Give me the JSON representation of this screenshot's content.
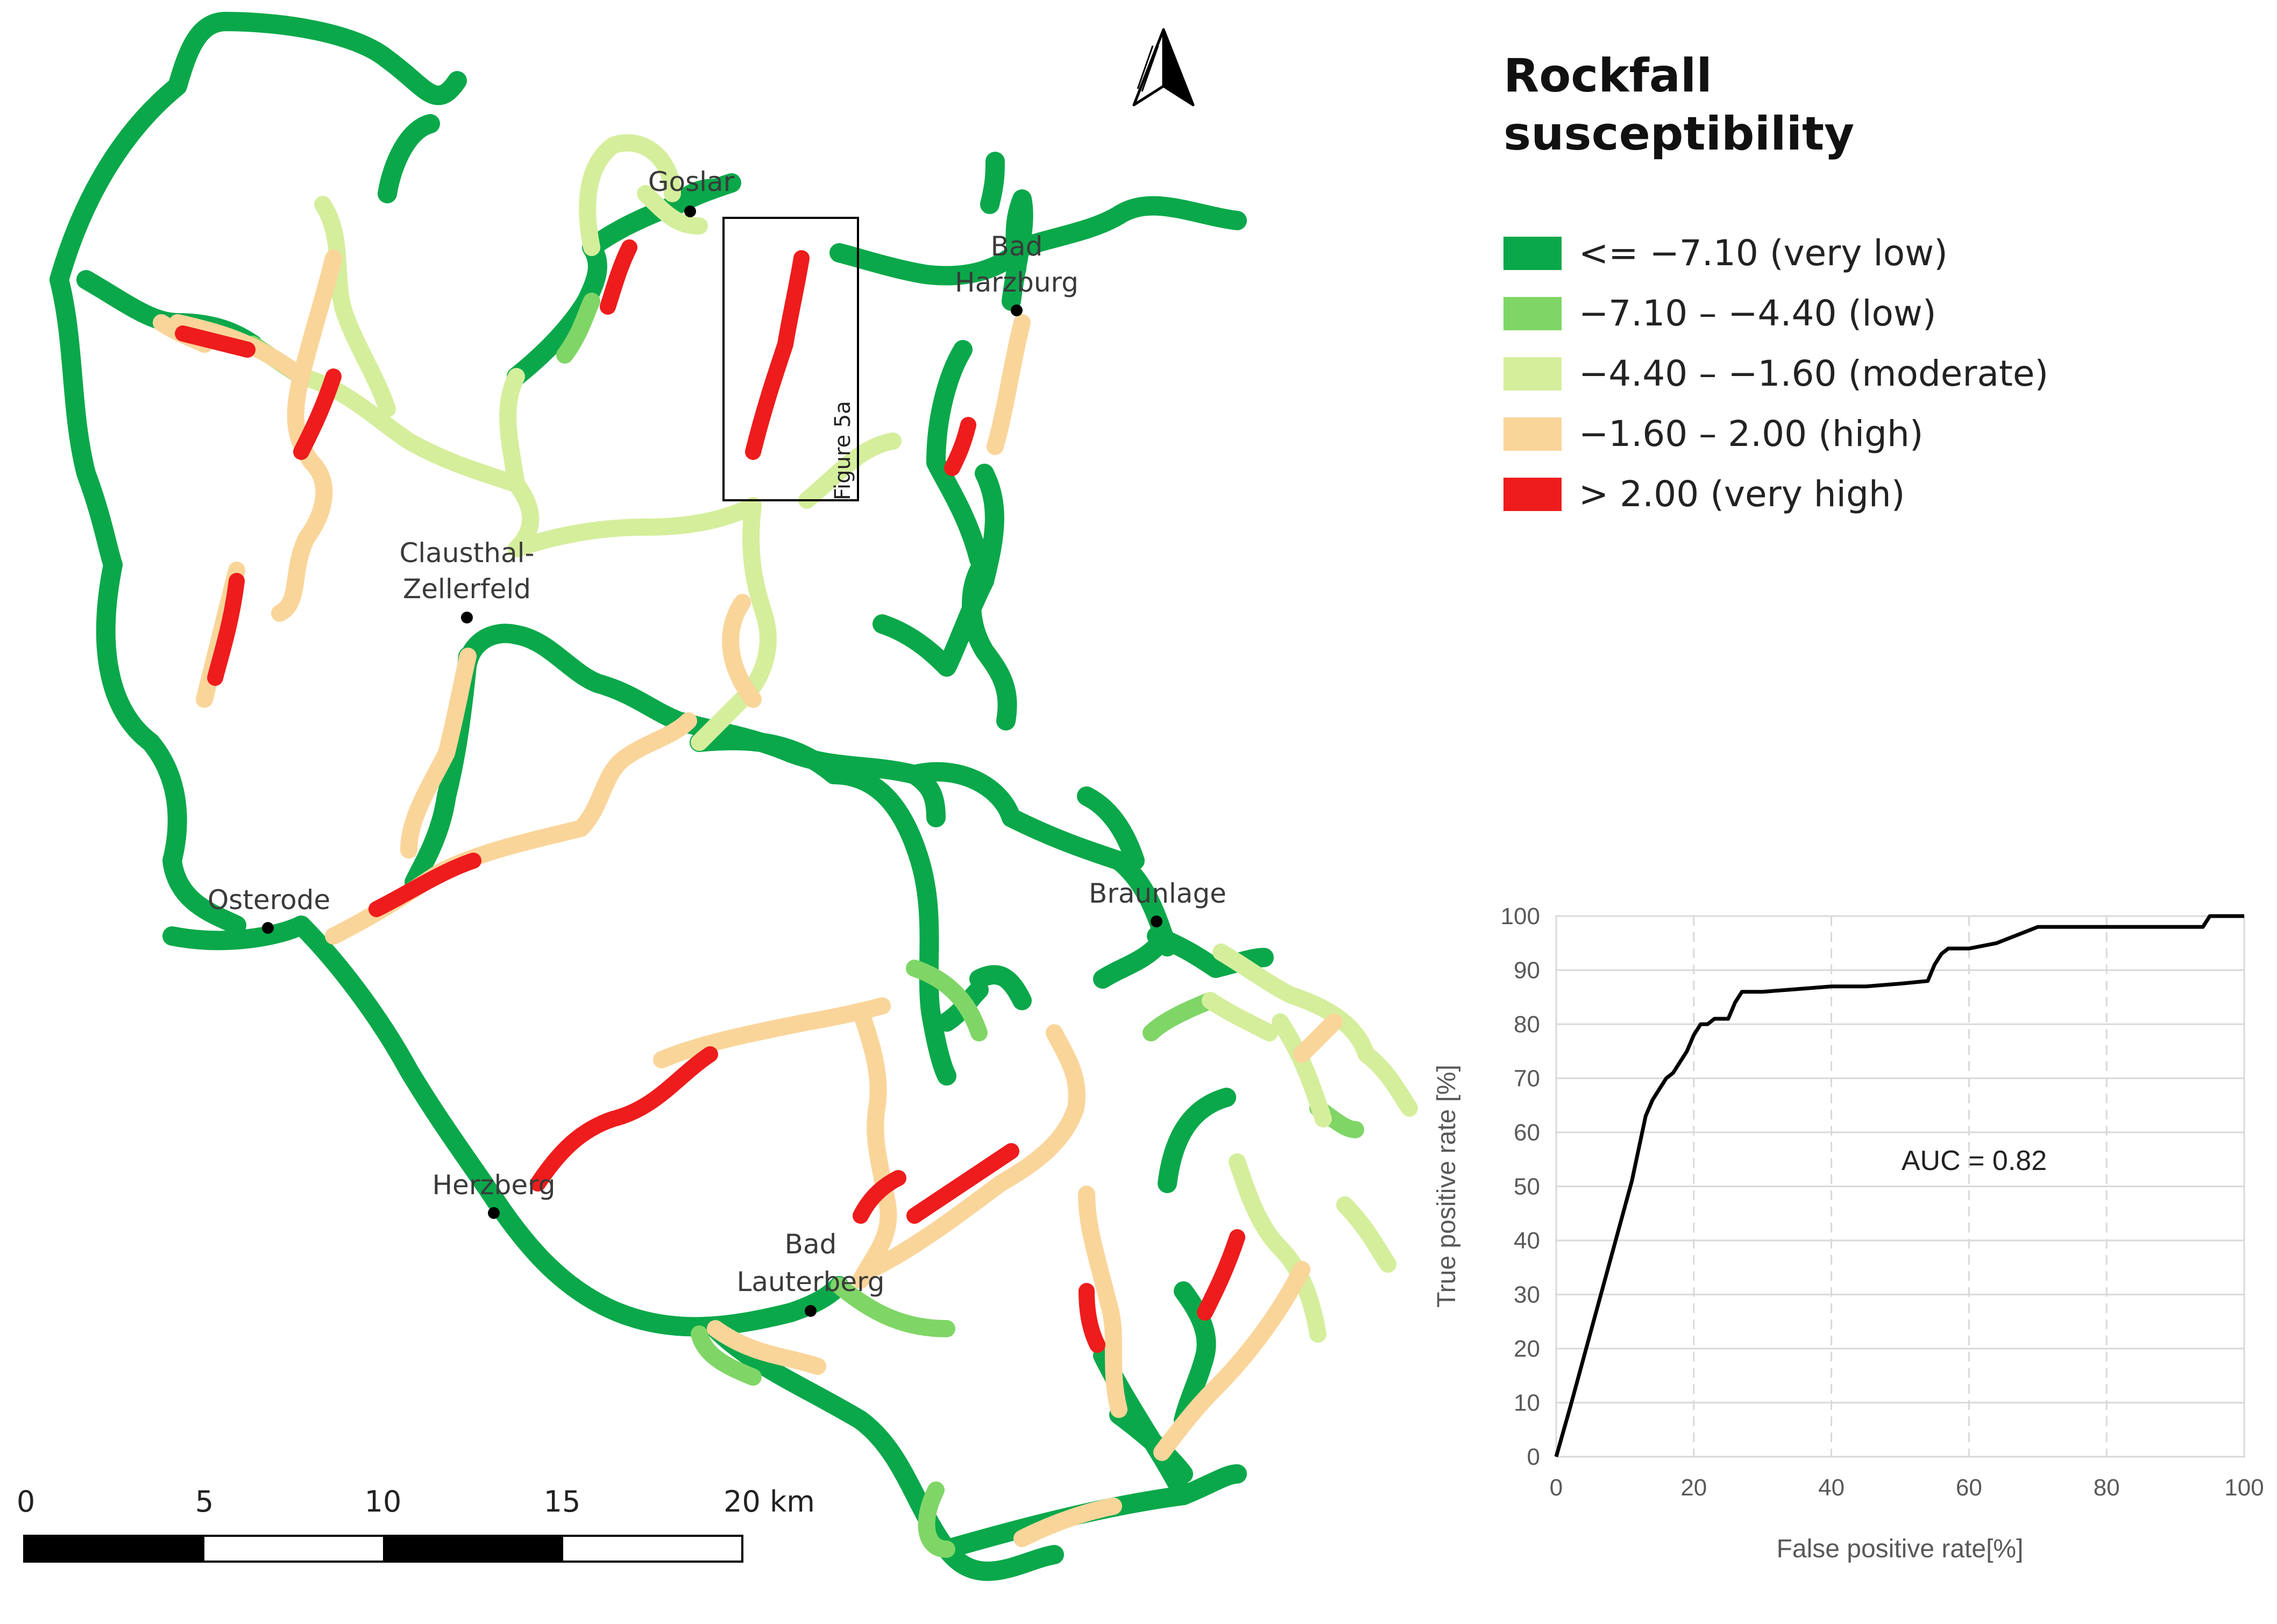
{
  "map": {
    "cities": [
      {
        "id": "goslar",
        "lines": [
          "Goslar"
        ]
      },
      {
        "id": "bad-harzburg",
        "lines": [
          "Bad",
          "Harzburg"
        ]
      },
      {
        "id": "clausthal",
        "lines": [
          "Clausthal-",
          "Zellerfeld"
        ]
      },
      {
        "id": "osterode",
        "lines": [
          "Osterode"
        ]
      },
      {
        "id": "braunlage",
        "lines": [
          "Braunlage"
        ]
      },
      {
        "id": "herzberg",
        "lines": [
          "Herzberg"
        ]
      },
      {
        "id": "bad-lauterberg",
        "lines": [
          "Bad",
          "Lauterberg"
        ]
      }
    ],
    "inset_label": "Figure 5a",
    "north_arrow_icon": "north-arrow-icon",
    "scalebar": {
      "ticks": [
        "0",
        "5",
        "10",
        "15",
        "20 km"
      ]
    }
  },
  "legend": {
    "title_lines": [
      "Rockfall",
      "susceptibility"
    ],
    "items": [
      {
        "label": "<= −7.10 (very low)",
        "color": "#0aa84a"
      },
      {
        "label": "−7.10 – −4.40 (low)",
        "color": "#7fd666"
      },
      {
        "label": "−4.40 – −1.60 (moderate)",
        "color": "#d5ee9c"
      },
      {
        "label": "−1.60 – 2.00 (high)",
        "color": "#fad59a"
      },
      {
        "label": "> 2.00 (very high)",
        "color": "#ee1c1c"
      }
    ]
  },
  "chart_data": {
    "type": "line",
    "xlabel": "False positive rate[%]",
    "ylabel": "True positive rate [%]",
    "xlim": [
      0,
      100
    ],
    "ylim": [
      0,
      100
    ],
    "xticks": [
      0,
      20,
      40,
      60,
      80,
      100
    ],
    "yticks": [
      0,
      10,
      20,
      30,
      40,
      50,
      60,
      70,
      80,
      90,
      100
    ],
    "grid": true,
    "annotation": "AUC = 0.82",
    "series": [
      {
        "color": "#000000",
        "x": [
          0,
          2,
          5,
          8,
          11,
          13,
          14,
          15,
          16,
          17,
          18,
          19,
          20,
          21,
          22,
          23,
          25,
          26,
          27,
          30,
          35,
          40,
          45,
          50,
          54,
          55,
          56,
          57,
          60,
          62,
          64,
          66,
          68,
          70,
          75,
          80,
          85,
          90,
          94,
          95,
          100
        ],
        "y": [
          0,
          9,
          23,
          37,
          51,
          63,
          66,
          68,
          70,
          71,
          73,
          75,
          78,
          80,
          80,
          81,
          81,
          84,
          86,
          86,
          86.5,
          87,
          87,
          87.5,
          88,
          91,
          93,
          94,
          94,
          94.5,
          95,
          96,
          97,
          98,
          98,
          98,
          98,
          98,
          98,
          100,
          100
        ]
      }
    ]
  }
}
